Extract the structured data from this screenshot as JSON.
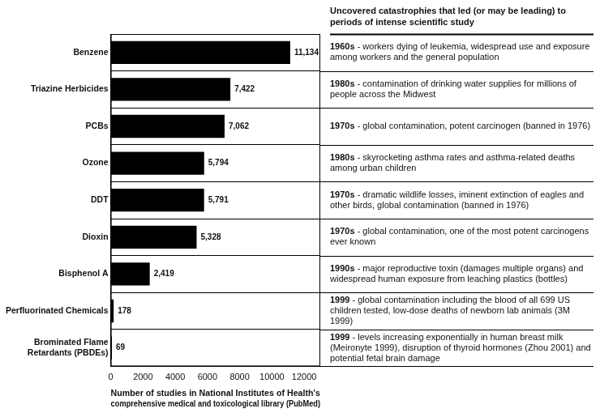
{
  "chart_data": {
    "type": "bar",
    "orientation": "horizontal",
    "categories": [
      "Benzene",
      "Triazine Herbicides",
      "PCBs",
      "Ozone",
      "DDT",
      "Dioxin",
      "Bisphenol A",
      "Perfluorinated Chemicals",
      "Brominated Flame Retardants (PBDEs)"
    ],
    "values": [
      11134,
      7422,
      7062,
      5794,
      5791,
      5328,
      2419,
      178,
      69
    ],
    "value_labels": [
      "11,134",
      "7,422",
      "7,062",
      "5,794",
      "5,791",
      "5,328",
      "2,419",
      "178",
      "69"
    ],
    "data_labels": true,
    "color": "#000000",
    "xlim": [
      0,
      13000
    ],
    "xticks": [
      0,
      2000,
      4000,
      6000,
      8000,
      10000,
      12000
    ],
    "xlabel": [
      "Number of studies in National Institutes of Health's",
      "comprehensive medical and toxicological library (PubMed)"
    ],
    "grid": true,
    "annotations": {
      "title": "Uncovered catastrophies that led (or may be leading) to periods of intense scientific study",
      "items": [
        {
          "period": "1960s",
          "text": "- workers dying of leukemia, widespread use and exposure among workers and the general population"
        },
        {
          "period": "1980s",
          "text": "- contamination of drinking water supplies for millions of people across the Midwest"
        },
        {
          "period": "1970s",
          "text": "- global contamination, potent carcinogen (banned in 1976)"
        },
        {
          "period": "1980s",
          "text": "- skyrocketing asthma rates and asthma-related deaths among urban children"
        },
        {
          "period": "1970s",
          "text": "- dramatic wildlife losses, iminent extinction of eagles and other birds, global contamination (banned in 1976)"
        },
        {
          "period": "1970s",
          "text": "- global contamination, one of the most potent carcinogens ever known"
        },
        {
          "period": "1990s",
          "text": "- major reproductive toxin (damages multiple organs) and widespread human exposure from leaching plastics (bottles)"
        },
        {
          "period": "1999",
          "text": "- global contamination including the blood of all 699 US children tested, low-dose deaths of newborn lab animals (3M 1999)"
        },
        {
          "period": "1999",
          "text": "- levels increasing exponentially in human breast milk (Meironyte 1999), disruption of thyroid hormones (Zhou 2001) and potential fetal brain damage"
        }
      ]
    }
  }
}
